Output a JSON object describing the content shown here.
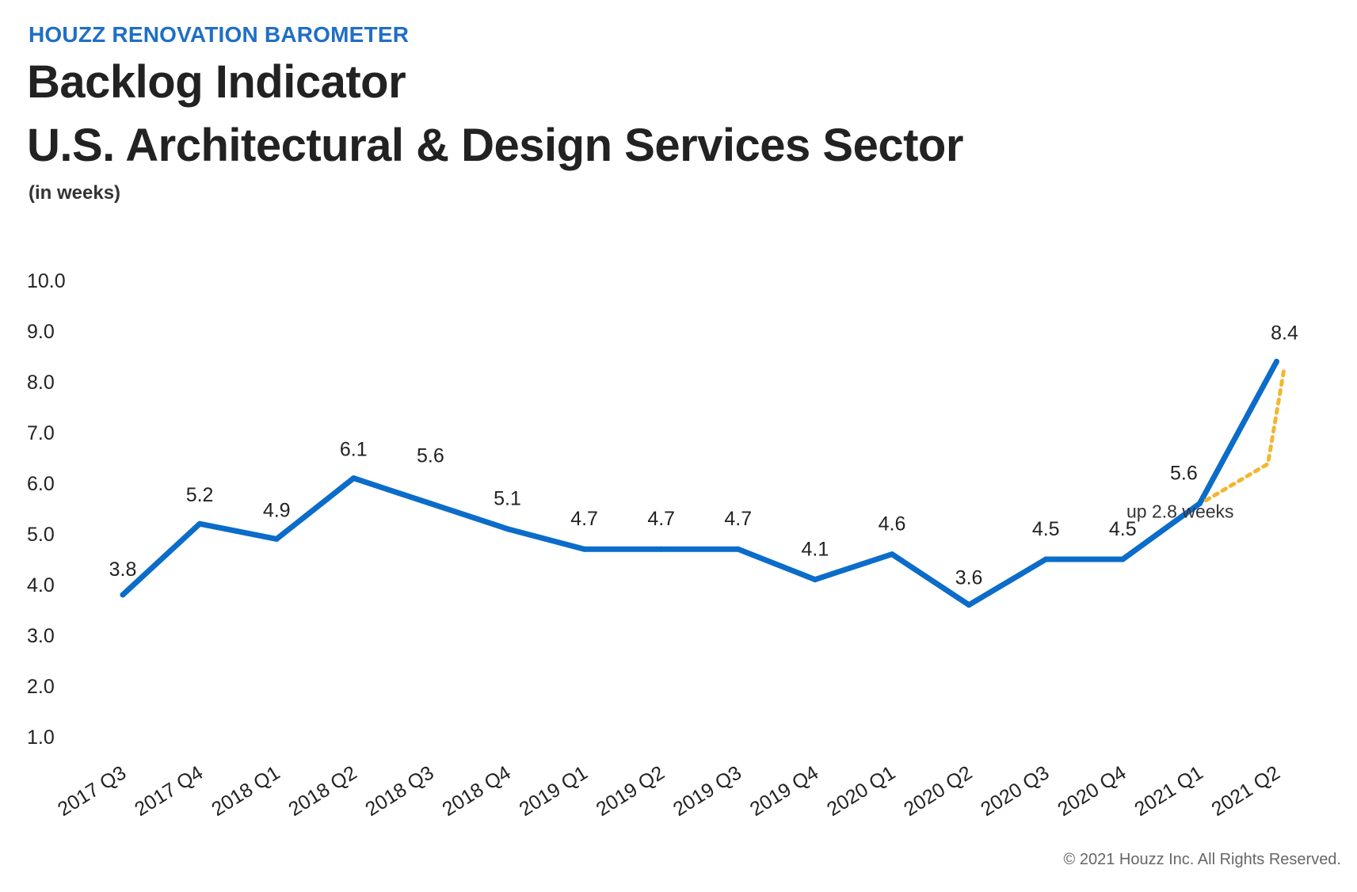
{
  "kicker": "HOUZZ RENOVATION BAROMETER",
  "title_line1": "Backlog Indicator",
  "title_line2": "U.S. Architectural & Design Services Sector",
  "unit_label": "(in weeks)",
  "copyright": "© 2021 Houzz Inc. All Rights Reserved.",
  "colors": {
    "line": "#0b6cc9",
    "dotted": "#f2b630",
    "kicker": "#1f6fc5",
    "text": "#222222"
  },
  "chart_data": {
    "type": "line",
    "title": "Backlog Indicator U.S. Architectural & Design Services Sector",
    "subtitle": "(in weeks)",
    "xlabel": "",
    "ylabel": "",
    "ylim": [
      1.0,
      10.0
    ],
    "yticks": [
      "1.0",
      "2.0",
      "3.0",
      "4.0",
      "5.0",
      "6.0",
      "7.0",
      "8.0",
      "9.0",
      "10.0"
    ],
    "grid": false,
    "categories": [
      "2017 Q3",
      "2017 Q4",
      "2018 Q1",
      "2018 Q2",
      "2018 Q3",
      "2018 Q4",
      "2019 Q1",
      "2019 Q2",
      "2019 Q3",
      "2019 Q4",
      "2020 Q1",
      "2020 Q2",
      "2020 Q3",
      "2020 Q4",
      "2021 Q1",
      "2021 Q2"
    ],
    "values": [
      3.8,
      5.2,
      4.9,
      6.1,
      5.6,
      5.1,
      4.7,
      4.7,
      4.7,
      4.1,
      4.6,
      3.6,
      4.5,
      4.5,
      5.6,
      8.4
    ],
    "data_labels": [
      "3.8",
      "5.2",
      "4.9",
      "6.1",
      "5.6",
      "5.1",
      "4.7",
      "4.7",
      "4.7",
      "4.1",
      "4.6",
      "3.6",
      "4.5",
      "4.5",
      "5.6",
      "8.4"
    ],
    "annotation": {
      "text": "up 2.8 weeks",
      "from": "2021 Q1",
      "to": "2021 Q2"
    }
  }
}
